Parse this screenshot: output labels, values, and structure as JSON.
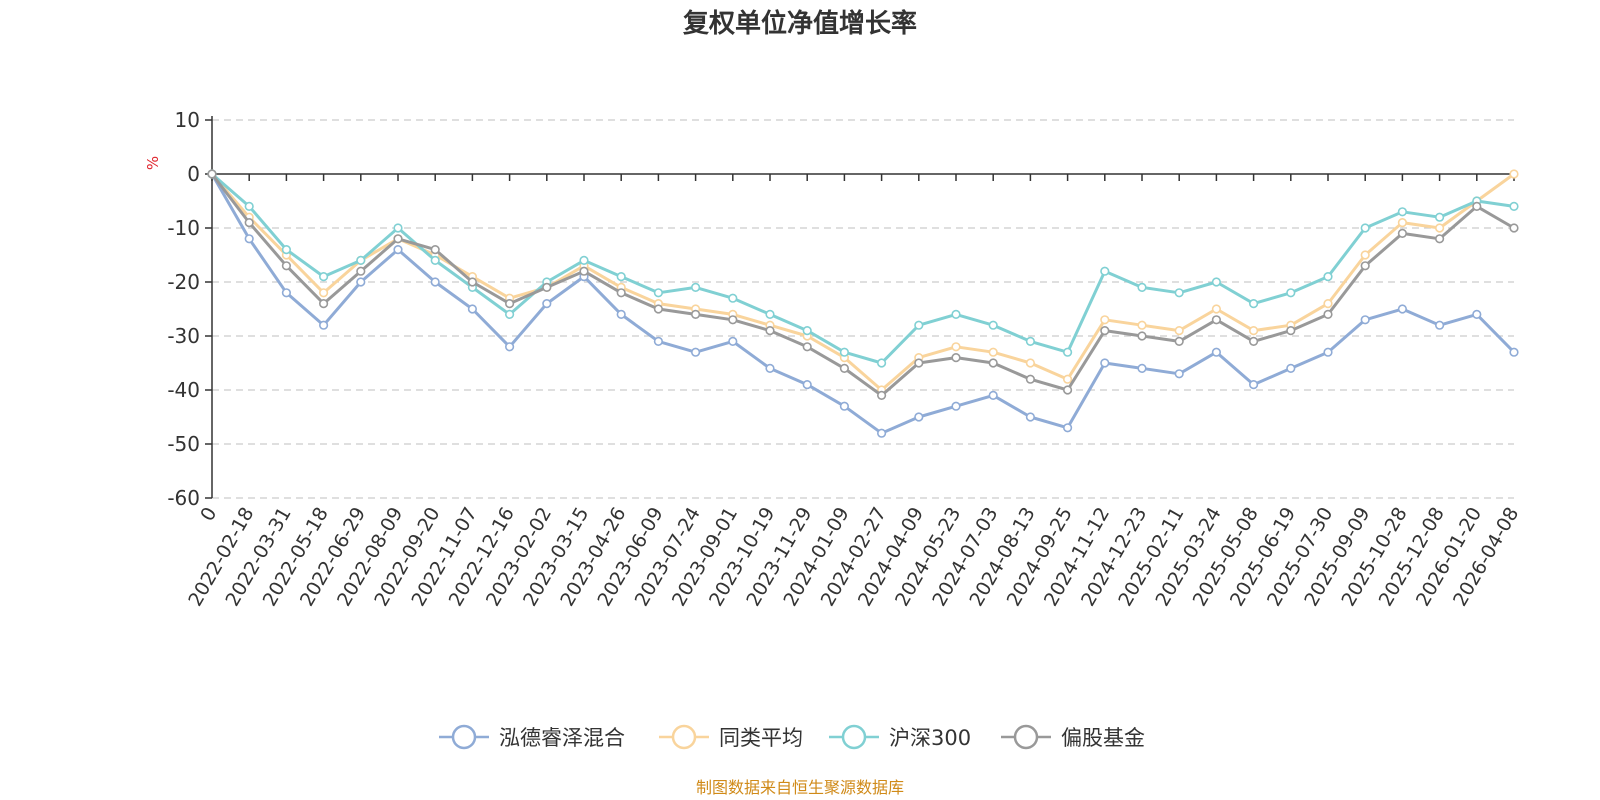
{
  "chart_data": {
    "type": "line",
    "title": "复权单位净值增长率",
    "ylabel": "%",
    "ylim": [
      -60,
      10
    ],
    "yticks": [
      10,
      0,
      -10,
      -20,
      -30,
      -40,
      -50,
      -60
    ],
    "grid": true,
    "legend_position": "bottom",
    "x": [
      "0",
      "2022-02-18",
      "2022-03-31",
      "2022-05-18",
      "2022-06-29",
      "2022-08-09",
      "2022-09-20",
      "2022-11-07",
      "2022-12-16",
      "2023-02-02",
      "2023-03-15",
      "2023-04-26",
      "2023-06-09",
      "2023-07-24",
      "2023-09-01",
      "2023-10-19",
      "2023-11-29",
      "2024-01-09",
      "2024-02-27",
      "2024-04-09",
      "2024-05-23",
      "2024-07-03",
      "2024-08-13",
      "2024-09-25",
      "2024-11-12",
      "2024-12-23",
      "2025-02-11",
      "2025-03-24",
      "2025-05-08",
      "2025-06-19",
      "2025-07-30",
      "2025-09-09",
      "2025-10-28",
      "2025-12-08",
      "2026-01-20",
      "2026-04-08"
    ],
    "series": [
      {
        "name": "泓德睿泽混合",
        "color": "#8fabd6",
        "values": [
          0,
          -12,
          -22,
          -28,
          -20,
          -14,
          -20,
          -25,
          -32,
          -24,
          -19,
          -26,
          -31,
          -33,
          -31,
          -36,
          -39,
          -43,
          -48,
          -45,
          -43,
          -41,
          -45,
          -47,
          -35,
          -36,
          -37,
          -33,
          -39,
          -36,
          -33,
          -27,
          -25,
          -28,
          -26,
          -33
        ]
      },
      {
        "name": "同类平均",
        "color": "#f9d49c",
        "values": [
          0,
          -8,
          -15,
          -22,
          -16,
          -12,
          -15,
          -19,
          -23,
          -21,
          -17,
          -21,
          -24,
          -25,
          -26,
          -28,
          -30,
          -34,
          -40,
          -34,
          -32,
          -33,
          -35,
          -38,
          -27,
          -28,
          -29,
          -25,
          -29,
          -28,
          -24,
          -15,
          -9,
          -10,
          -5,
          0
        ]
      },
      {
        "name": "沪深300",
        "color": "#80d0d3",
        "values": [
          0,
          -6,
          -14,
          -19,
          -16,
          -10,
          -16,
          -21,
          -26,
          -20,
          -16,
          -19,
          -22,
          -21,
          -23,
          -26,
          -29,
          -33,
          -35,
          -28,
          -26,
          -28,
          -31,
          -33,
          -18,
          -21,
          -22,
          -20,
          -24,
          -22,
          -19,
          -10,
          -7,
          -8,
          -5,
          -6
        ]
      },
      {
        "name": "偏股基金",
        "color": "#999999",
        "values": [
          0,
          -9,
          -17,
          -24,
          -18,
          -12,
          -14,
          -20,
          -24,
          -21,
          -18,
          -22,
          -25,
          -26,
          -27,
          -29,
          -32,
          -36,
          -41,
          -35,
          -34,
          -35,
          -38,
          -40,
          -29,
          -30,
          -31,
          -27,
          -31,
          -29,
          -26,
          -17,
          -11,
          -12,
          -6,
          -10
        ]
      }
    ]
  },
  "source_text": "制图数据来自恒生聚源数据库",
  "colors": {
    "axis": "#333333",
    "grid": "#cccccc",
    "unit": "#e0262f",
    "source": "#d08a18"
  }
}
